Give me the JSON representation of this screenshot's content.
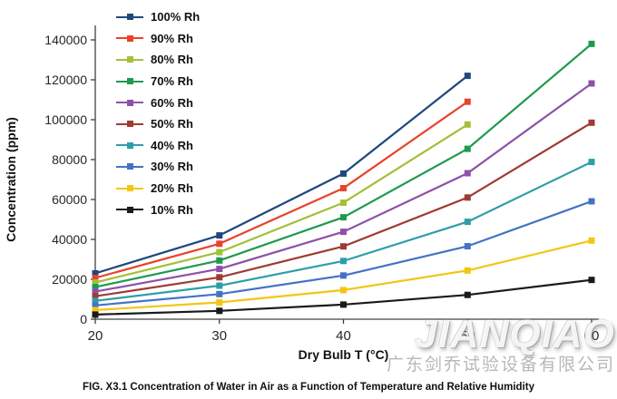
{
  "figure": {
    "caption": "FIG. X3.1 Concentration of Water in Air as a Function of Temperature and Relative Humidity"
  },
  "watermark": {
    "brand": "JIANQIAO",
    "company": "广东剑乔试验设备有限公司"
  },
  "chart_data": {
    "type": "line",
    "title": "",
    "xlabel": "Dry Bulb T (°C)",
    "ylabel": "Concentration (ppm)",
    "xlim": [
      20,
      60
    ],
    "ylim": [
      0,
      140000
    ],
    "xticks": [
      20,
      30,
      40,
      50,
      60
    ],
    "yticks": [
      0,
      20000,
      40000,
      60000,
      80000,
      100000,
      120000,
      140000
    ],
    "grid": false,
    "legend_position": "top-left-inside",
    "marker": "square",
    "series": [
      {
        "name": "100% Rh",
        "color": "#1F497D",
        "x": [
          20,
          30,
          40,
          50
        ],
        "values": [
          23000,
          42000,
          73000,
          122000
        ]
      },
      {
        "name": "90% Rh",
        "color": "#E8432C",
        "x": [
          20,
          30,
          40,
          50
        ],
        "values": [
          20700,
          37800,
          65700,
          109000
        ]
      },
      {
        "name": "80% Rh",
        "color": "#A2C037",
        "x": [
          20,
          30,
          40,
          50
        ],
        "values": [
          18400,
          33600,
          58400,
          97600
        ]
      },
      {
        "name": "70% Rh",
        "color": "#1E9A50",
        "x": [
          20,
          30,
          40,
          50,
          60
        ],
        "values": [
          16100,
          29400,
          51100,
          85400,
          138000
        ]
      },
      {
        "name": "60% Rh",
        "color": "#8E51A8",
        "x": [
          20,
          30,
          40,
          50,
          60
        ],
        "values": [
          13800,
          25200,
          43800,
          73200,
          118200
        ]
      },
      {
        "name": "50% Rh",
        "color": "#9E3B33",
        "x": [
          20,
          30,
          40,
          50,
          60
        ],
        "values": [
          11500,
          21000,
          36500,
          61000,
          98500
        ]
      },
      {
        "name": "40% Rh",
        "color": "#2D9FA8",
        "x": [
          20,
          30,
          40,
          50,
          60
        ],
        "values": [
          9200,
          16800,
          29200,
          48800,
          78800
        ]
      },
      {
        "name": "30% Rh",
        "color": "#4472C4",
        "x": [
          20,
          30,
          40,
          50,
          60
        ],
        "values": [
          6900,
          12600,
          21900,
          36600,
          59100
        ]
      },
      {
        "name": "20% Rh",
        "color": "#F3C613",
        "x": [
          20,
          30,
          40,
          50,
          60
        ],
        "values": [
          4600,
          8400,
          14600,
          24400,
          39400
        ]
      },
      {
        "name": "10% Rh",
        "color": "#1A1A1A",
        "x": [
          20,
          30,
          40,
          50,
          60
        ],
        "values": [
          2300,
          4200,
          7300,
          12200,
          19700
        ]
      }
    ]
  }
}
